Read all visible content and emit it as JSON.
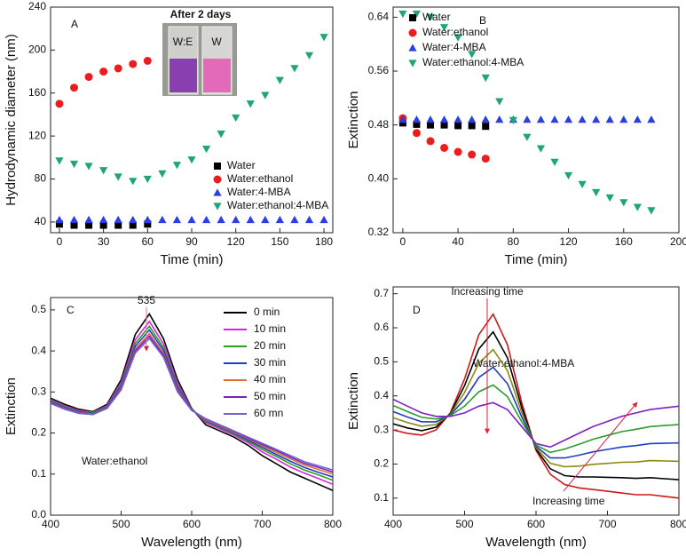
{
  "chart_data": [
    {
      "type": "scatter",
      "panel_label": "A",
      "x_label": "Time (min)",
      "y_label": "Hydrodynamic diameter (nm)",
      "xlim": [
        -6,
        186
      ],
      "ylim": [
        30,
        240
      ],
      "xticks": [
        0,
        30,
        60,
        90,
        120,
        150,
        180
      ],
      "yticks": [
        40,
        80,
        120,
        160,
        200,
        240
      ],
      "legend": "lower right",
      "inset": {
        "title": "After 2 days",
        "labels": [
          "W:E",
          "W"
        ]
      },
      "series": [
        {
          "name": "Water",
          "color": "#000000",
          "marker": "square",
          "x": [
            0,
            10,
            20,
            30,
            40,
            50,
            60
          ],
          "values": [
            38,
            37,
            37,
            37,
            37,
            37,
            38
          ]
        },
        {
          "name": "Water:ethanol",
          "color": "#ee1c1c",
          "marker": "circle",
          "x": [
            0,
            10,
            20,
            30,
            40,
            50,
            60
          ],
          "values": [
            150,
            165,
            175,
            180,
            183,
            187,
            190
          ]
        },
        {
          "name": "Water:4-MBA",
          "color": "#2a3fe0",
          "marker": "triangle-up",
          "x": [
            0,
            10,
            20,
            30,
            40,
            50,
            60,
            70,
            80,
            90,
            100,
            110,
            120,
            130,
            140,
            150,
            160,
            170,
            180
          ],
          "values": [
            42,
            42,
            42,
            42,
            42,
            42,
            42,
            42,
            42,
            42,
            42,
            42,
            42,
            42,
            42,
            42,
            42,
            42,
            42
          ]
        },
        {
          "name": "Water:ethanol:4-MBA",
          "color": "#1fa57a",
          "marker": "triangle-down",
          "x": [
            0,
            10,
            20,
            30,
            40,
            50,
            60,
            70,
            80,
            90,
            100,
            110,
            120,
            130,
            140,
            150,
            160,
            170,
            180
          ],
          "values": [
            97,
            94,
            92,
            88,
            82,
            78,
            80,
            85,
            93,
            98,
            108,
            122,
            137,
            150,
            158,
            172,
            183,
            195,
            212
          ]
        }
      ]
    },
    {
      "type": "scatter",
      "panel_label": "B",
      "x_label": "Time (min)",
      "y_label": "Extinction",
      "xlim": [
        -7,
        200
      ],
      "ylim": [
        0.32,
        0.655
      ],
      "xticks": [
        0,
        40,
        80,
        120,
        160,
        200
      ],
      "yticks": [
        0.32,
        {
          "value": 0.4,
          "label": "0.40"
        },
        0.48,
        0.56,
        0.64
      ],
      "legend": "upper right",
      "series": [
        {
          "name": "Water",
          "color": "#000000",
          "marker": "square",
          "x": [
            0,
            10,
            20,
            30,
            40,
            50,
            60
          ],
          "values": [
            0.483,
            0.481,
            0.48,
            0.48,
            0.479,
            0.479,
            0.478
          ]
        },
        {
          "name": "Water:ethanol",
          "color": "#ee1c1c",
          "marker": "circle",
          "x": [
            0,
            10,
            20,
            30,
            40,
            50,
            60
          ],
          "values": [
            0.49,
            0.468,
            0.456,
            0.446,
            0.44,
            0.436,
            0.43
          ]
        },
        {
          "name": "Water:4-MBA",
          "color": "#2a3fe0",
          "marker": "triangle-up",
          "x": [
            0,
            10,
            20,
            30,
            40,
            50,
            60,
            70,
            80,
            90,
            100,
            110,
            120,
            130,
            140,
            150,
            160,
            170,
            180
          ],
          "values": [
            0.488,
            0.488,
            0.488,
            0.488,
            0.488,
            0.488,
            0.488,
            0.488,
            0.488,
            0.488,
            0.488,
            0.488,
            0.488,
            0.488,
            0.488,
            0.488,
            0.488,
            0.488,
            0.488
          ]
        },
        {
          "name": "Water:ethanol:4-MBA",
          "color": "#1fa57a",
          "marker": "triangle-down",
          "x": [
            0,
            10,
            20,
            30,
            40,
            50,
            60,
            70,
            80,
            90,
            100,
            110,
            120,
            130,
            140,
            150,
            160,
            170,
            180
          ],
          "values": [
            0.645,
            0.645,
            0.64,
            0.625,
            0.61,
            0.585,
            0.55,
            0.515,
            0.487,
            0.462,
            0.445,
            0.425,
            0.405,
            0.392,
            0.38,
            0.372,
            0.365,
            0.358,
            0.353
          ]
        }
      ]
    },
    {
      "type": "line",
      "panel_label": "C",
      "x_label": "Wavelength (nm)",
      "y_label": "Extinction",
      "annotations": [
        "535",
        "Water:ethanol"
      ],
      "xlim": [
        400,
        800
      ],
      "ylim": [
        0,
        0.53
      ],
      "xticks": [
        400,
        500,
        600,
        700,
        800
      ],
      "yticks": [
        {
          "value": 0,
          "label": "0.0"
        },
        0.1,
        0.2,
        0.3,
        0.4,
        0.5
      ],
      "legend": "upper right",
      "x": [
        400,
        420,
        440,
        460,
        480,
        500,
        520,
        540,
        560,
        580,
        600,
        620,
        640,
        660,
        680,
        700,
        720,
        740,
        760,
        780,
        800
      ],
      "series": [
        {
          "name": "0 min",
          "color": "#000000",
          "values": [
            0.285,
            0.27,
            0.258,
            0.252,
            0.27,
            0.33,
            0.44,
            0.49,
            0.43,
            0.33,
            0.26,
            0.22,
            0.205,
            0.19,
            0.17,
            0.145,
            0.125,
            0.105,
            0.09,
            0.075,
            0.06
          ]
        },
        {
          "name": "10 min",
          "color": "#e020e0",
          "values": [
            0.281,
            0.266,
            0.255,
            0.25,
            0.267,
            0.323,
            0.427,
            0.472,
            0.417,
            0.321,
            0.259,
            0.225,
            0.21,
            0.195,
            0.176,
            0.154,
            0.136,
            0.117,
            0.102,
            0.089,
            0.075
          ]
        },
        {
          "name": "20 min",
          "color": "#2a9d2a",
          "values": [
            0.279,
            0.264,
            0.253,
            0.249,
            0.265,
            0.318,
            0.418,
            0.46,
            0.408,
            0.315,
            0.258,
            0.228,
            0.213,
            0.198,
            0.18,
            0.16,
            0.143,
            0.125,
            0.11,
            0.098,
            0.085
          ]
        },
        {
          "name": "30 min",
          "color": "#1f3fbf",
          "values": [
            0.277,
            0.262,
            0.252,
            0.247,
            0.264,
            0.314,
            0.411,
            0.451,
            0.401,
            0.311,
            0.257,
            0.23,
            0.215,
            0.2,
            0.183,
            0.165,
            0.148,
            0.131,
            0.116,
            0.104,
            0.093
          ]
        },
        {
          "name": "40 min",
          "color": "#e07030",
          "values": [
            0.275,
            0.26,
            0.25,
            0.246,
            0.262,
            0.31,
            0.404,
            0.442,
            0.394,
            0.306,
            0.256,
            0.232,
            0.217,
            0.202,
            0.186,
            0.169,
            0.153,
            0.137,
            0.122,
            0.111,
            0.1
          ]
        },
        {
          "name": "50 min",
          "color": "#8020c0",
          "values": [
            0.274,
            0.259,
            0.249,
            0.245,
            0.261,
            0.308,
            0.4,
            0.436,
            0.39,
            0.303,
            0.256,
            0.234,
            0.219,
            0.204,
            0.188,
            0.172,
            0.157,
            0.141,
            0.126,
            0.116,
            0.105
          ]
        },
        {
          "name": "60 mn",
          "color": "#7060d0",
          "values": [
            0.272,
            0.258,
            0.248,
            0.245,
            0.26,
            0.305,
            0.395,
            0.43,
            0.385,
            0.3,
            0.255,
            0.235,
            0.22,
            0.205,
            0.19,
            0.175,
            0.16,
            0.145,
            0.13,
            0.12,
            0.11
          ]
        }
      ]
    },
    {
      "type": "line",
      "panel_label": "D",
      "x_label": "Wavelength (nm)",
      "y_label": "Extinction",
      "annotations": [
        "Increasing time",
        "Water:ethanol:4-MBA",
        "Increasing time"
      ],
      "xlim": [
        400,
        800
      ],
      "ylim": [
        0.05,
        0.72
      ],
      "xticks": [
        400,
        500,
        600,
        700,
        800
      ],
      "yticks": [
        0.1,
        0.2,
        0.3,
        0.4,
        0.5,
        0.6,
        0.7
      ],
      "x": [
        400,
        420,
        440,
        460,
        480,
        500,
        520,
        540,
        560,
        580,
        600,
        620,
        640,
        660,
        680,
        700,
        720,
        740,
        760,
        780,
        800
      ],
      "series": [
        {
          "color": "#d01818",
          "values": [
            0.3,
            0.29,
            0.285,
            0.3,
            0.35,
            0.45,
            0.58,
            0.64,
            0.55,
            0.38,
            0.24,
            0.17,
            0.14,
            0.13,
            0.125,
            0.12,
            0.115,
            0.11,
            0.11,
            0.105,
            0.1
          ]
        },
        {
          "color": "#000000",
          "values": [
            0.318,
            0.306,
            0.298,
            0.308,
            0.348,
            0.43,
            0.538,
            0.588,
            0.512,
            0.366,
            0.244,
            0.186,
            0.166,
            0.162,
            0.162,
            0.161,
            0.16,
            0.158,
            0.16,
            0.157,
            0.154
          ]
        },
        {
          "color": "#8a8a10",
          "values": [
            0.336,
            0.322,
            0.311,
            0.316,
            0.346,
            0.41,
            0.496,
            0.536,
            0.474,
            0.352,
            0.248,
            0.202,
            0.192,
            0.194,
            0.199,
            0.202,
            0.205,
            0.206,
            0.21,
            0.209,
            0.208
          ]
        },
        {
          "color": "#1f3fbf",
          "values": [
            0.354,
            0.338,
            0.324,
            0.324,
            0.344,
            0.39,
            0.454,
            0.484,
            0.436,
            0.338,
            0.252,
            0.218,
            0.218,
            0.226,
            0.236,
            0.243,
            0.25,
            0.254,
            0.26,
            0.261,
            0.262
          ]
        },
        {
          "color": "#2a9d2a",
          "values": [
            0.372,
            0.354,
            0.337,
            0.332,
            0.342,
            0.37,
            0.412,
            0.432,
            0.398,
            0.324,
            0.256,
            0.234,
            0.244,
            0.258,
            0.273,
            0.284,
            0.295,
            0.302,
            0.31,
            0.313,
            0.316
          ]
        },
        {
          "color": "#8020c0",
          "values": [
            0.39,
            0.37,
            0.35,
            0.34,
            0.34,
            0.35,
            0.37,
            0.38,
            0.36,
            0.31,
            0.26,
            0.25,
            0.27,
            0.29,
            0.31,
            0.325,
            0.34,
            0.35,
            0.36,
            0.365,
            0.37
          ]
        }
      ]
    }
  ]
}
